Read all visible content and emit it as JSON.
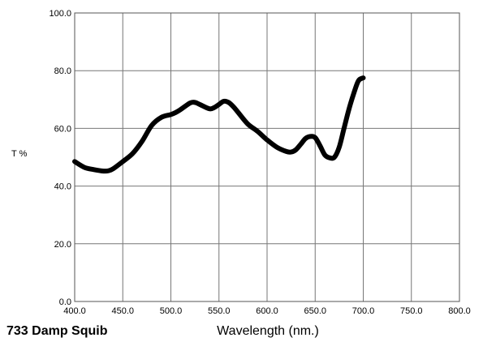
{
  "chart_data": {
    "type": "line",
    "title": "733 Damp Squib",
    "xlabel": "Wavelength (nm.)",
    "ylabel": "T %",
    "xlim": [
      400,
      800
    ],
    "ylim": [
      0,
      100
    ],
    "x_ticks": [
      "400.0",
      "450.0",
      "500.0",
      "550.0",
      "600.0",
      "650.0",
      "700.0",
      "750.0",
      "800.0"
    ],
    "y_ticks": [
      "0.0",
      "20.0",
      "40.0",
      "60.0",
      "80.0",
      "100.0"
    ],
    "grid": true,
    "line_color": "#000000",
    "series": [
      {
        "x": [
          400,
          410,
          420,
          430,
          435,
          440,
          450,
          460,
          470,
          480,
          490,
          500,
          505,
          510,
          520,
          525,
          530,
          540,
          545,
          550,
          555,
          560,
          565,
          570,
          580,
          590,
          600,
          610,
          620,
          625,
          630,
          635,
          640,
          645,
          650,
          655,
          660,
          665,
          670,
          675,
          680,
          685,
          690,
          695,
          700
        ],
        "y": [
          48.5,
          46.5,
          45.7,
          45.2,
          45.3,
          46.0,
          48.5,
          51.2,
          55.5,
          61.0,
          63.8,
          64.8,
          65.5,
          66.5,
          68.8,
          69.0,
          68.3,
          66.8,
          67.2,
          68.3,
          69.4,
          69.0,
          67.5,
          65.5,
          61.5,
          59.0,
          56.0,
          53.5,
          52.0,
          51.8,
          52.6,
          54.5,
          56.5,
          57.2,
          56.8,
          54.0,
          50.8,
          49.8,
          50.0,
          53.5,
          60.0,
          66.5,
          72.0,
          76.5,
          77.5
        ]
      }
    ]
  }
}
